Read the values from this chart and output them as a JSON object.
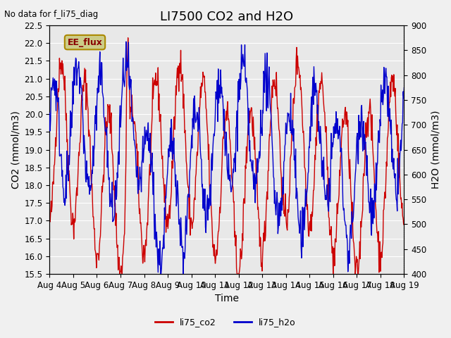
{
  "title": "LI7500 CO2 and H2O",
  "top_left_text": "No data for f_li75_diag",
  "xlabel": "Time",
  "ylabel_left": "CO2 (mmol/m3)",
  "ylabel_right": "H2O (mmol/m3)",
  "ylim_left": [
    15.5,
    22.5
  ],
  "ylim_right": [
    400,
    900
  ],
  "legend_labels": [
    "li75_co2",
    "li75_h2o"
  ],
  "legend_colors": [
    "#cc0000",
    "#0000cc"
  ],
  "ee_flux_label": "EE_flux",
  "ee_flux_bg": "#cccc88",
  "ee_flux_border": "#aa8800",
  "plot_bg": "#e8e8e8",
  "grid_color": "#ffffff",
  "x_tick_labels": [
    "Aug 4",
    "Aug 5",
    "Aug 6",
    "Aug 7",
    "Aug 8",
    "Aug 9",
    "Aug 10",
    "Aug 11",
    "Aug 12",
    "Aug 13",
    "Aug 14",
    "Aug 15",
    "Aug 16",
    "Aug 17",
    "Aug 18",
    "Aug 19"
  ],
  "title_fontsize": 13,
  "axis_fontsize": 10,
  "tick_fontsize": 8.5,
  "line_width": 1.0
}
